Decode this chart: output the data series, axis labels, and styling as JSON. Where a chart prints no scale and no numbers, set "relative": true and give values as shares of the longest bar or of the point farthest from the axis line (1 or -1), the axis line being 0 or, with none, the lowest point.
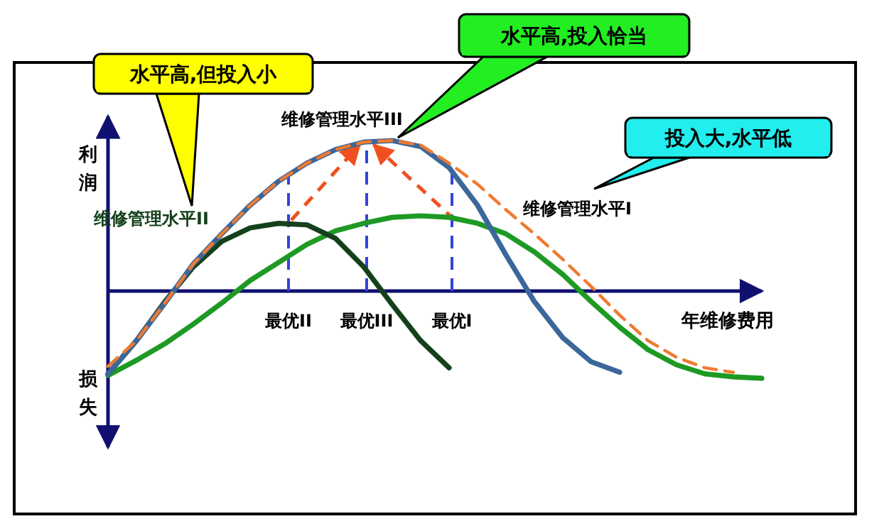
{
  "chart_data": {
    "type": "line",
    "relative": true,
    "xlabel": "年维修费用",
    "ylabel": "利润",
    "categories": [
      null,
      null,
      null,
      null,
      null,
      null,
      null,
      null,
      null,
      null,
      null,
      null,
      null,
      null,
      null,
      null,
      null,
      null,
      null,
      null,
      null,
      null,
      null,
      null
    ],
    "series": [
      {
        "name": "维修管理水平II",
        "color": "#14401c",
        "line_style": "solid",
        "values": [
          -0.55,
          -0.33,
          -0.07,
          0.16,
          0.33,
          0.42,
          0.45,
          0.44,
          0.35,
          0.16,
          -0.09,
          -0.33,
          -0.51,
          null,
          null,
          null,
          null,
          null,
          null,
          null,
          null,
          null,
          null,
          null
        ]
      },
      {
        "name": "维修管理水平III",
        "color": "#3b679a",
        "line_style": "solid",
        "values": [
          -0.55,
          -0.33,
          -0.08,
          0.18,
          0.38,
          0.57,
          0.73,
          0.85,
          0.94,
          0.99,
          1.0,
          0.96,
          0.82,
          0.57,
          0.24,
          -0.07,
          -0.31,
          -0.47,
          -0.54,
          null,
          null,
          null,
          null,
          null
        ]
      },
      {
        "name": "维修管理水平I",
        "color": "#1e9a24",
        "line_style": "solid",
        "values": [
          -0.56,
          -0.46,
          -0.35,
          -0.22,
          -0.08,
          0.07,
          0.19,
          0.31,
          0.4,
          0.45,
          0.49,
          0.5,
          0.49,
          0.45,
          0.38,
          0.26,
          0.11,
          -0.07,
          -0.24,
          -0.39,
          -0.49,
          -0.55,
          -0.57,
          -0.58
        ]
      },
      {
        "color": "#f07a30",
        "line_style": "dashed",
        "values": [
          -0.5,
          -0.33,
          -0.08,
          0.18,
          0.38,
          0.57,
          0.73,
          0.85,
          0.94,
          0.99,
          1.0,
          0.97,
          0.85,
          0.71,
          0.54,
          0.38,
          0.21,
          0.03,
          -0.16,
          -0.33,
          -0.44,
          -0.51,
          -0.54,
          null
        ]
      }
    ],
    "ref_lines": [
      {
        "axis": "y",
        "value": 0,
        "color": "#101070",
        "line_style": "solid"
      }
    ],
    "annotations": [
      "损失",
      "水平高,但投入小",
      "水平高,投入恰当",
      "投入大,水平低",
      "最优II",
      "最优III",
      "最优I"
    ],
    "marker": "none",
    "legend": false,
    "grid": false
  }
}
